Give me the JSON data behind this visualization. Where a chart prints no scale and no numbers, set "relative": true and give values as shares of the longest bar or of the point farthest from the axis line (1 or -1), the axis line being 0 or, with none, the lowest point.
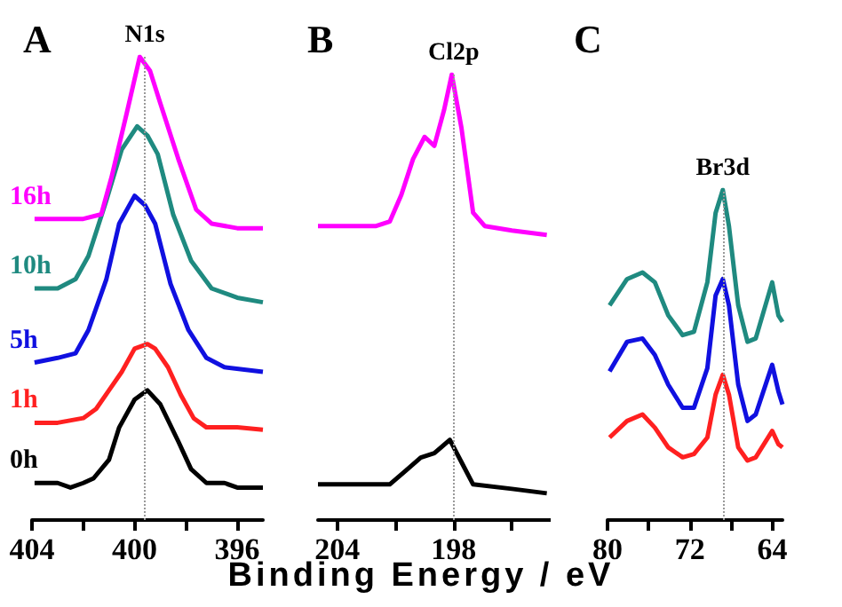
{
  "chart_data": [
    {
      "type": "line",
      "title": "A",
      "relative": true,
      "marker": "none",
      "xlim": [
        404,
        395
      ],
      "xticks": [
        404,
        {
          "value": 402,
          "label": null
        },
        400,
        {
          "value": 398,
          "label": null
        },
        396
      ],
      "ref_lines": [
        {
          "axis": "x",
          "value": 399.6,
          "label": "N1s",
          "color": "#999999",
          "line_style": "dotted"
        }
      ],
      "series": [
        {
          "name": "0h",
          "color": "#000000",
          "x": [
            403.9,
            403,
            402.5,
            402,
            401.6,
            401,
            400.6,
            400,
            399.5,
            399,
            398.3,
            397.8,
            397.2,
            396.5,
            396,
            395
          ],
          "values": [
            0.08,
            0.08,
            0.07,
            0.08,
            0.09,
            0.13,
            0.2,
            0.26,
            0.28,
            0.25,
            0.17,
            0.11,
            0.08,
            0.08,
            0.07,
            0.07
          ]
        },
        {
          "name": "1h",
          "color": "#ff2020",
          "x": [
            403.9,
            403,
            402,
            401.5,
            401,
            400.5,
            400,
            399.5,
            399.2,
            398.7,
            398.2,
            397.7,
            397.2,
            396,
            395
          ],
          "values": [
            0.21,
            0.21,
            0.22,
            0.24,
            0.28,
            0.32,
            0.37,
            0.38,
            0.37,
            0.33,
            0.27,
            0.22,
            0.2,
            0.2,
            0.195
          ]
        },
        {
          "name": "5h",
          "color": "#1010e0",
          "x": [
            403.9,
            403,
            402.3,
            401.8,
            401.1,
            400.6,
            400,
            399.6,
            399.2,
            398.6,
            397.9,
            397.2,
            396.5,
            395
          ],
          "values": [
            0.34,
            0.35,
            0.36,
            0.41,
            0.52,
            0.64,
            0.7,
            0.68,
            0.64,
            0.51,
            0.41,
            0.35,
            0.33,
            0.32
          ]
        },
        {
          "name": "10h",
          "color": "#1f8a80",
          "x": [
            403.9,
            403,
            402.3,
            401.8,
            401.1,
            400.5,
            399.9,
            399.5,
            399.1,
            398.5,
            397.8,
            397,
            396,
            395
          ],
          "values": [
            0.5,
            0.5,
            0.52,
            0.57,
            0.69,
            0.8,
            0.85,
            0.83,
            0.79,
            0.66,
            0.56,
            0.5,
            0.48,
            0.47
          ]
        },
        {
          "name": "16h",
          "color": "#ff00ff",
          "x": [
            403.9,
            403,
            402,
            401.3,
            400.9,
            400.3,
            399.8,
            399.4,
            399,
            398.3,
            397.6,
            397,
            396,
            395
          ],
          "values": [
            0.65,
            0.65,
            0.65,
            0.66,
            0.74,
            0.88,
            1.0,
            0.97,
            0.9,
            0.78,
            0.67,
            0.64,
            0.63,
            0.63
          ]
        }
      ]
    },
    {
      "type": "line",
      "title": "B",
      "relative": true,
      "marker": "none",
      "xlabel": "Binding Energy / eV",
      "xlim": [
        205,
        193
      ],
      "xticks": [
        204,
        {
          "value": 201,
          "label": null
        },
        198,
        {
          "value": 195,
          "label": null
        }
      ],
      "ref_lines": [
        {
          "axis": "x",
          "value": 198,
          "label": "Cl2p",
          "color": "#999999",
          "line_style": "dotted"
        }
      ],
      "series": [
        {
          "color": "#ff00ff",
          "x": [
            205,
            204,
            203,
            202,
            201.3,
            200.7,
            200.1,
            199.5,
            199,
            198.5,
            198.1,
            197.6,
            197,
            196.4,
            195,
            193.2
          ],
          "values": [
            0.66,
            0.66,
            0.66,
            0.66,
            0.67,
            0.73,
            0.81,
            0.86,
            0.84,
            0.92,
            1.0,
            0.88,
            0.69,
            0.66,
            0.65,
            0.64
          ]
        },
        {
          "color": "#000000",
          "x": [
            205,
            203,
            201.3,
            200.5,
            199.7,
            199,
            198.2,
            197.6,
            197,
            195,
            193.2
          ],
          "values": [
            0.08,
            0.08,
            0.08,
            0.11,
            0.14,
            0.15,
            0.18,
            0.13,
            0.08,
            0.07,
            0.06
          ]
        }
      ]
    },
    {
      "type": "line",
      "title": "C",
      "relative": true,
      "marker": "none",
      "xlim": [
        80,
        63
      ],
      "xticks": [
        80,
        {
          "value": 76,
          "label": null
        },
        72,
        {
          "value": 68,
          "label": null
        },
        64
      ],
      "x": [
        79.8,
        78.1,
        76.6,
        75.4,
        74.1,
        72.7,
        71.6,
        70.3,
        69.5,
        68.8,
        68.2,
        67.3,
        66.4,
        65.6,
        64.0,
        63.4,
        63.0
      ],
      "ref_lines": [
        {
          "axis": "x",
          "value": 68.8,
          "label": "Br3d",
          "color": "#999999",
          "line_style": "dotted"
        }
      ],
      "series": [
        {
          "color": "#1f8a80",
          "values": [
            0.65,
            0.73,
            0.75,
            0.72,
            0.62,
            0.56,
            0.57,
            0.72,
            0.93,
            1.0,
            0.89,
            0.65,
            0.54,
            0.55,
            0.72,
            0.62,
            0.6
          ]
        },
        {
          "color": "#1010e0",
          "values": [
            0.45,
            0.54,
            0.55,
            0.5,
            0.41,
            0.34,
            0.34,
            0.46,
            0.68,
            0.73,
            0.65,
            0.41,
            0.3,
            0.32,
            0.47,
            0.39,
            0.35
          ]
        },
        {
          "color": "#ff2020",
          "values": [
            0.25,
            0.3,
            0.32,
            0.28,
            0.22,
            0.19,
            0.2,
            0.25,
            0.38,
            0.44,
            0.38,
            0.22,
            0.18,
            0.19,
            0.27,
            0.23,
            0.22
          ]
        }
      ]
    }
  ]
}
